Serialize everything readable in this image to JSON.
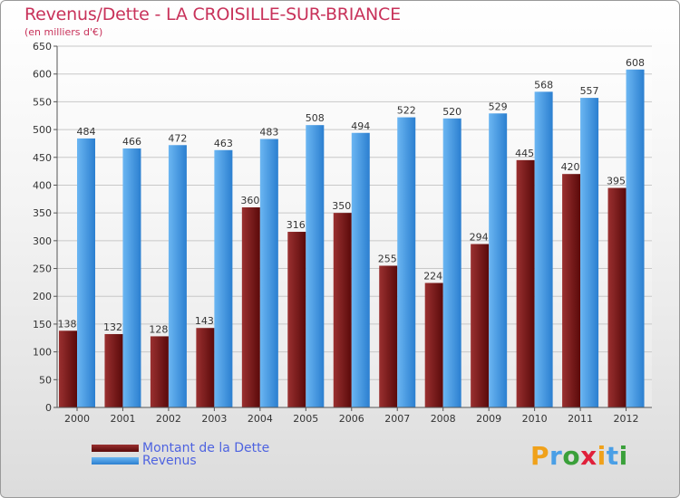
{
  "chart_data": {
    "type": "bar",
    "title": "Revenus/Dette - LA CROISILLE-SUR-BRIANCE",
    "subtitle": "(en milliers d'€)",
    "categories": [
      "2000",
      "2001",
      "2002",
      "2003",
      "2004",
      "2005",
      "2006",
      "2007",
      "2008",
      "2009",
      "2010",
      "2011",
      "2012"
    ],
    "series": [
      {
        "name": "Montant de la Dette",
        "values": [
          138,
          132,
          128,
          143,
          360,
          316,
          350,
          255,
          224,
          294,
          445,
          420,
          395
        ],
        "color": "#7a1a1a"
      },
      {
        "name": "Revenus",
        "values": [
          484,
          466,
          472,
          463,
          483,
          508,
          494,
          522,
          520,
          529,
          568,
          557,
          608
        ],
        "color": "#4a9fe6"
      }
    ],
    "ylim": [
      0,
      650
    ],
    "yticks": [
      0,
      50,
      100,
      150,
      200,
      250,
      300,
      350,
      400,
      450,
      500,
      550,
      600,
      650
    ],
    "grid": true,
    "legend_position": "bottom-left"
  },
  "logo": {
    "letters": [
      "P",
      "r",
      "o",
      "x",
      "i",
      "t",
      "i"
    ],
    "colors": [
      "#f0a11a",
      "#4a9fe6",
      "#3aa03a",
      "#e0203a",
      "#f0a11a",
      "#4a9fe6",
      "#3aa03a"
    ]
  }
}
